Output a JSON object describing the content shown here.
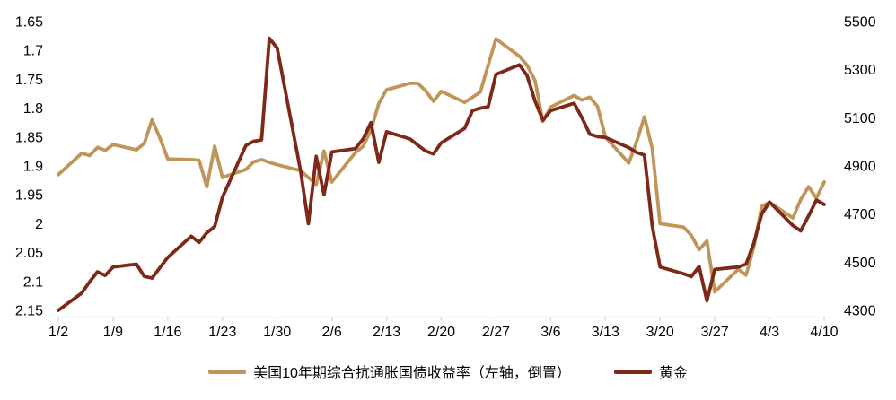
{
  "colors": {
    "tips_line": "#C0955A",
    "gold_line": "#7E2817",
    "axis_line": "#D9D9D9",
    "text": "#000000",
    "background": "#FFFFFF"
  },
  "legend": {
    "tips_label": "美国10年期综合抗通胀国债收益率（左轴，倒置）",
    "gold_label": "黄金"
  },
  "chart_data": {
    "type": "line",
    "title": "",
    "xlabel": "",
    "ylabel": "",
    "grid": false,
    "legend_position": "bottom-center",
    "x_axis": {
      "tick_labels": [
        "1/2",
        "1/9",
        "1/16",
        "1/23",
        "1/30",
        "2/6",
        "2/13",
        "2/20",
        "2/27",
        "3/6",
        "3/13",
        "3/20",
        "3/27",
        "4/3",
        "4/10"
      ]
    },
    "left_axis": {
      "min": 1.65,
      "max": 2.15,
      "inverted": true,
      "tick_labels": [
        "1.65",
        "1.7",
        "1.75",
        "1.8",
        "1.85",
        "1.9",
        "1.95",
        "2",
        "2.05",
        "2.1",
        "2.15"
      ]
    },
    "right_axis": {
      "min": 4300,
      "max": 5500,
      "tick_labels": [
        "5500",
        "5300",
        "5100",
        "4900",
        "4700",
        "4500",
        "4300"
      ]
    },
    "dates": [
      "1/2",
      "1/5",
      "1/6",
      "1/7",
      "1/8",
      "1/9",
      "1/12",
      "1/13",
      "1/14",
      "1/15",
      "1/16",
      "1/19",
      "1/20",
      "1/21",
      "1/22",
      "1/23",
      "1/26",
      "1/27",
      "1/28",
      "1/29",
      "1/30",
      "2/2",
      "2/3",
      "2/4",
      "2/5",
      "2/6",
      "2/9",
      "2/10",
      "2/11",
      "2/12",
      "2/13",
      "2/16",
      "2/17",
      "2/18",
      "2/19",
      "2/20",
      "2/23",
      "2/24",
      "2/25",
      "2/26",
      "2/27",
      "3/2",
      "3/3",
      "3/4",
      "3/5",
      "3/6",
      "3/9",
      "3/10",
      "3/11",
      "3/12",
      "3/13",
      "3/16",
      "3/17",
      "3/18",
      "3/19",
      "3/20",
      "3/23",
      "3/24",
      "3/25",
      "3/26",
      "3/27",
      "3/30",
      "3/31",
      "4/1",
      "4/2",
      "4/3",
      "4/6",
      "4/7",
      "4/8",
      "4/9",
      "4/10"
    ],
    "series": [
      {
        "name": "美国10年期综合抗通胀国债收益率（左轴，倒置）",
        "axis": "left",
        "color": "#C0955A",
        "values": [
          1.915,
          1.878,
          1.882,
          1.868,
          1.873,
          1.863,
          1.872,
          1.861,
          1.82,
          1.852,
          1.888,
          1.889,
          1.89,
          1.936,
          1.866,
          1.92,
          1.906,
          1.893,
          1.889,
          1.894,
          1.898,
          1.908,
          1.92,
          1.932,
          1.874,
          1.928,
          1.877,
          1.866,
          1.838,
          1.792,
          1.768,
          1.757,
          1.757,
          1.77,
          1.788,
          1.771,
          1.79,
          1.781,
          1.772,
          1.726,
          1.68,
          1.71,
          1.726,
          1.752,
          1.823,
          1.798,
          1.778,
          1.786,
          1.781,
          1.797,
          1.85,
          1.895,
          1.858,
          1.815,
          1.87,
          2.0,
          2.006,
          2.02,
          2.045,
          2.03,
          2.118,
          2.079,
          2.089,
          2.04,
          1.97,
          1.963,
          1.99,
          1.958,
          1.936,
          1.956,
          1.928
        ]
      },
      {
        "name": "黄金",
        "axis": "right",
        "color": "#7E2817",
        "values": [
          4300,
          4372,
          4418,
          4460,
          4445,
          4480,
          4492,
          4441,
          4434,
          4478,
          4520,
          4608,
          4582,
          4622,
          4648,
          4770,
          4985,
          5002,
          5008,
          5430,
          5390,
          4880,
          4660,
          4940,
          4780,
          4958,
          4972,
          5012,
          5080,
          4915,
          5042,
          5012,
          4986,
          4962,
          4950,
          4996,
          5056,
          5130,
          5140,
          5146,
          5280,
          5320,
          5275,
          5170,
          5090,
          5130,
          5160,
          5100,
          5032,
          5022,
          5018,
          4976,
          4956,
          4945,
          4650,
          4480,
          4452,
          4440,
          4482,
          4340,
          4470,
          4480,
          4492,
          4580,
          4700,
          4750,
          4652,
          4630,
          4692,
          4758,
          4740
        ]
      }
    ]
  }
}
